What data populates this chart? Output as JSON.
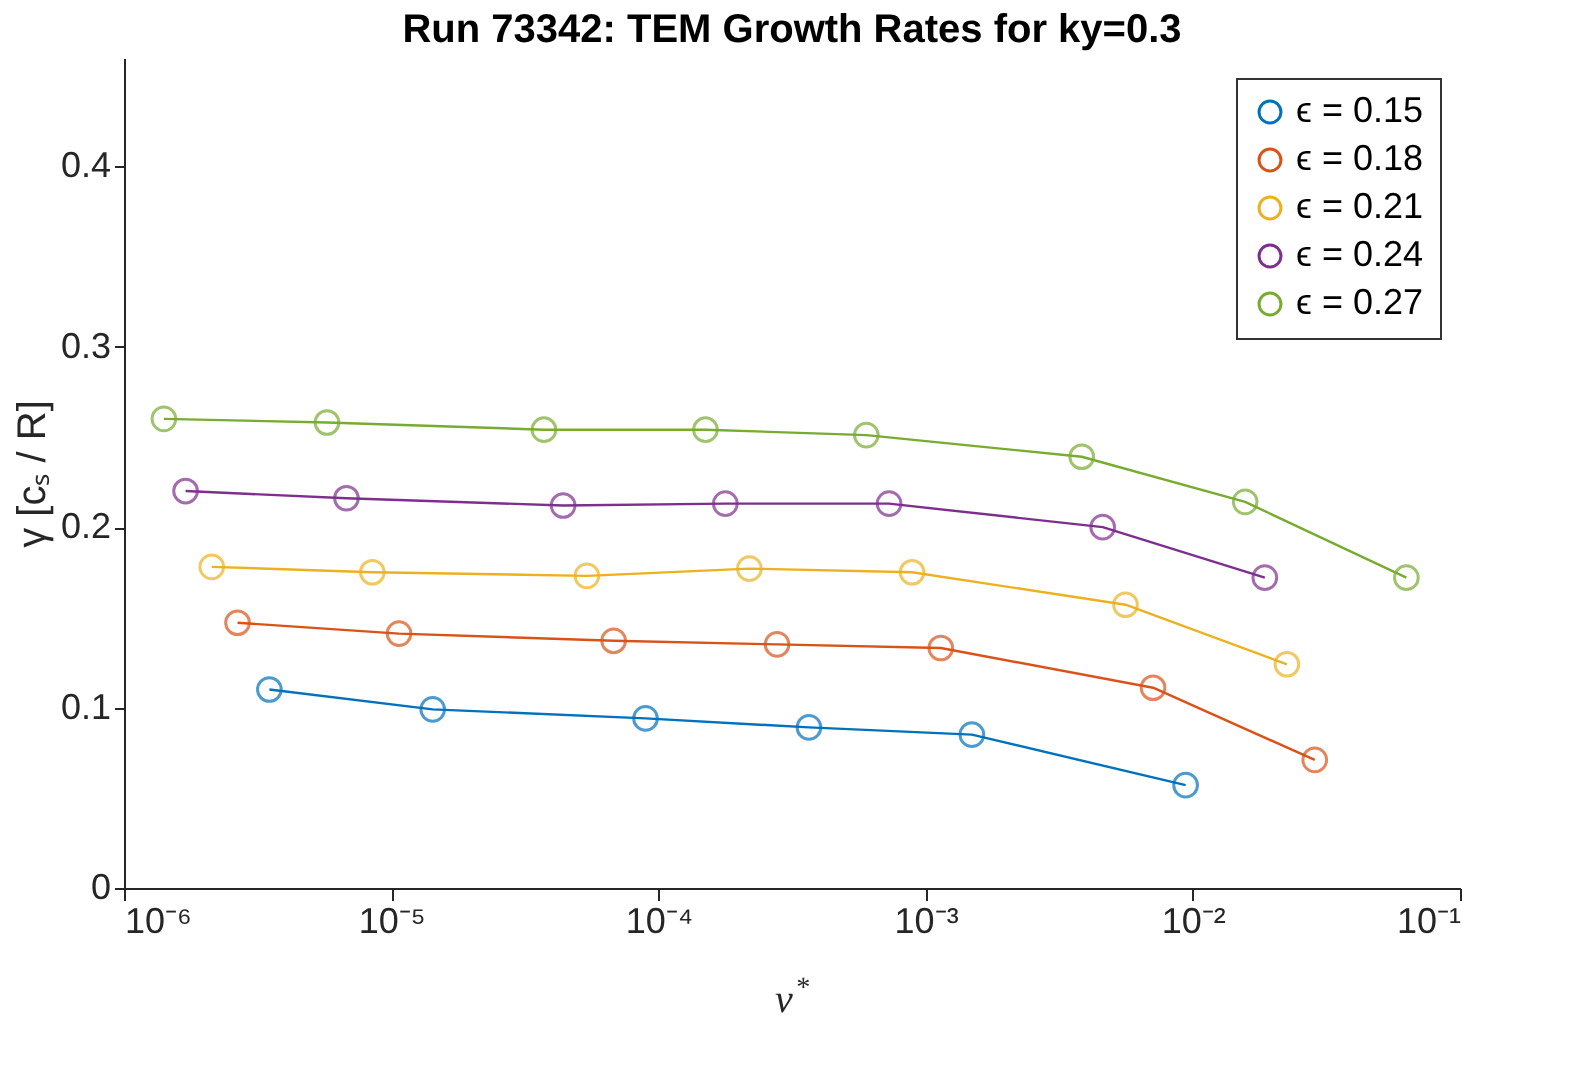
{
  "chart_data": {
    "type": "line",
    "title": "Run 73342: TEM Growth Rates for ky=0.3",
    "xlabel": "ν$^{*}$",
    "ylabel": "γ [cₛ / R]",
    "log": "x",
    "grid": false,
    "legend": "top right",
    "marker": "circle",
    "line_style": "solid",
    "xlim": [
      1e-06,
      0.1
    ],
    "ylim": [
      0,
      0.46
    ],
    "xticks": [
      {
        "value": 1e-06,
        "label": "10⁻⁶"
      },
      {
        "value": 1e-05,
        "label": "10⁻⁵"
      },
      {
        "value": 0.0001,
        "label": "10⁻⁴"
      },
      {
        "value": 0.001,
        "label": "10⁻³"
      },
      {
        "value": 0.01,
        "label": "10⁻²"
      },
      {
        "value": 0.1,
        "label": "10⁻¹"
      }
    ],
    "yticks": [
      0,
      0.1,
      0.2,
      0.3,
      0.4
    ],
    "series": [
      {
        "name": "ϵ = 0.15",
        "color": "#0072bd",
        "x": [
          3.5e-06,
          1.43e-05,
          8.95e-05,
          0.000366,
          0.00149,
          0.0094
        ],
        "values": [
          0.11,
          0.099,
          0.094,
          0.089,
          0.085,
          0.057
        ]
      },
      {
        "name": "ϵ = 0.18",
        "color": "#d95319",
        "x": [
          2.66e-06,
          1.07e-05,
          6.8e-05,
          0.000278,
          0.00114,
          0.0071,
          0.0286
        ],
        "values": [
          0.147,
          0.141,
          0.137,
          0.135,
          0.133,
          0.111,
          0.071
        ]
      },
      {
        "name": "ϵ = 0.21",
        "color": "#edb120",
        "x": [
          2.13e-06,
          8.5e-06,
          5.4e-05,
          0.000219,
          0.00089,
          0.0056,
          0.0225
        ],
        "values": [
          0.178,
          0.175,
          0.173,
          0.177,
          0.175,
          0.157,
          0.124
        ]
      },
      {
        "name": "ϵ = 0.24",
        "color": "#7e2f8e",
        "x": [
          1.7e-06,
          6.8e-06,
          4.4e-05,
          0.000178,
          0.00073,
          0.0046,
          0.0186
        ],
        "values": [
          0.22,
          0.216,
          0.212,
          0.213,
          0.213,
          0.2,
          0.172
        ]
      },
      {
        "name": "ϵ = 0.27",
        "color": "#77ac30",
        "x": [
          1.41e-06,
          5.75e-06,
          3.73e-05,
          0.00015,
          0.0006,
          0.00384,
          0.0157,
          0.063
        ],
        "values": [
          0.26,
          0.258,
          0.254,
          0.254,
          0.251,
          0.239,
          0.214,
          0.172
        ]
      }
    ]
  }
}
